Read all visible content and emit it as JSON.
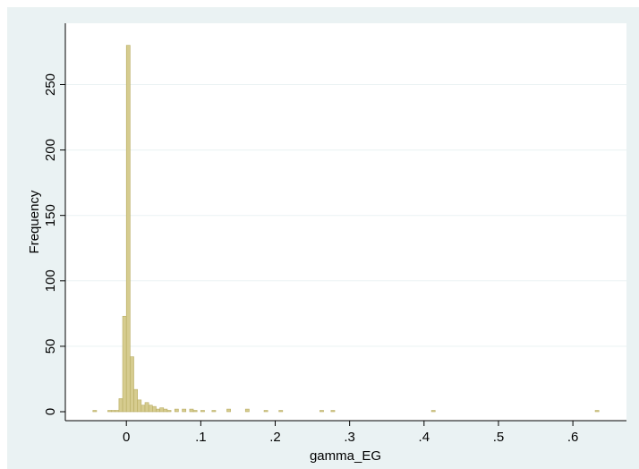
{
  "chart_data": {
    "type": "bar",
    "histogram": true,
    "xlabel": "gamma_EG",
    "ylabel": "Frequency",
    "xlim": [
      -0.07,
      0.66
    ],
    "ylim": [
      0,
      290
    ],
    "xticks": [
      {
        "value": 0,
        "label": "0"
      },
      {
        "value": 0.1,
        "label": ".1"
      },
      {
        "value": 0.2,
        "label": ".2"
      },
      {
        "value": 0.3,
        "label": ".3"
      },
      {
        "value": 0.4,
        "label": ".4"
      },
      {
        "value": 0.5,
        "label": ".5"
      },
      {
        "value": 0.6,
        "label": ".6"
      }
    ],
    "yticks": [
      {
        "value": 0,
        "label": "0"
      },
      {
        "value": 50,
        "label": "50"
      },
      {
        "value": 100,
        "label": "100"
      },
      {
        "value": 150,
        "label": "150"
      },
      {
        "value": 200,
        "label": "200"
      },
      {
        "value": 250,
        "label": "250"
      }
    ],
    "grid": true,
    "bar_color": "#d6cc8f",
    "bar_edge_color": "#b8ac62",
    "bin_width": 0.005,
    "bins": [
      {
        "x": -0.045,
        "count": 1
      },
      {
        "x": -0.025,
        "count": 1
      },
      {
        "x": -0.02,
        "count": 1
      },
      {
        "x": -0.015,
        "count": 1
      },
      {
        "x": -0.01,
        "count": 10
      },
      {
        "x": -0.005,
        "count": 73
      },
      {
        "x": 0.0,
        "count": 280
      },
      {
        "x": 0.005,
        "count": 42
      },
      {
        "x": 0.01,
        "count": 17
      },
      {
        "x": 0.015,
        "count": 9
      },
      {
        "x": 0.02,
        "count": 5
      },
      {
        "x": 0.025,
        "count": 7
      },
      {
        "x": 0.03,
        "count": 5
      },
      {
        "x": 0.035,
        "count": 4
      },
      {
        "x": 0.04,
        "count": 2
      },
      {
        "x": 0.045,
        "count": 3
      },
      {
        "x": 0.05,
        "count": 2
      },
      {
        "x": 0.055,
        "count": 1
      },
      {
        "x": 0.065,
        "count": 2
      },
      {
        "x": 0.075,
        "count": 2
      },
      {
        "x": 0.085,
        "count": 2
      },
      {
        "x": 0.09,
        "count": 1
      },
      {
        "x": 0.1,
        "count": 1
      },
      {
        "x": 0.115,
        "count": 1
      },
      {
        "x": 0.135,
        "count": 2
      },
      {
        "x": 0.16,
        "count": 2
      },
      {
        "x": 0.185,
        "count": 1
      },
      {
        "x": 0.205,
        "count": 1
      },
      {
        "x": 0.26,
        "count": 1
      },
      {
        "x": 0.275,
        "count": 1
      },
      {
        "x": 0.41,
        "count": 1
      },
      {
        "x": 0.63,
        "count": 1
      }
    ]
  }
}
